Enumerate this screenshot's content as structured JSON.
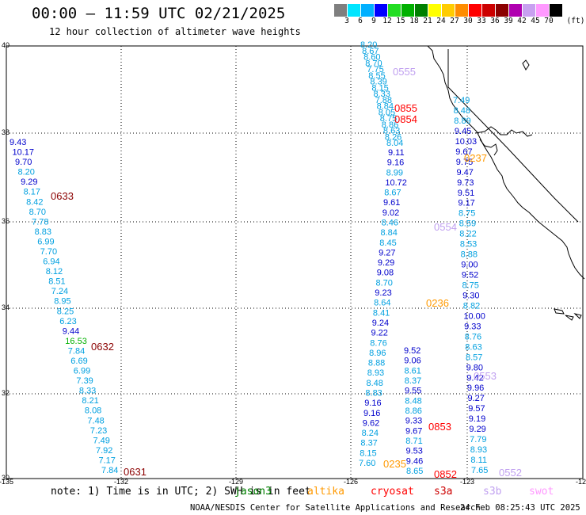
{
  "title": "00:00 — 11:59 UTC 02/21/2025",
  "subtitle": "12 hour collection of altimeter wave heights",
  "legend": {
    "units": "(ft)",
    "bins": [
      {
        "label": "3",
        "color": "#7f7f7f"
      },
      {
        "label": "6",
        "color": "#00e5ff"
      },
      {
        "label": "9",
        "color": "#00b0ff"
      },
      {
        "label": "12",
        "color": "#0000ff"
      },
      {
        "label": "15",
        "color": "#22dd22"
      },
      {
        "label": "18",
        "color": "#00b000"
      },
      {
        "label": "21",
        "color": "#008000"
      },
      {
        "label": "24",
        "color": "#ffff00"
      },
      {
        "label": "27",
        "color": "#ffcc00"
      },
      {
        "label": "30",
        "color": "#ff8c00"
      },
      {
        "label": "33",
        "color": "#ff0000"
      },
      {
        "label": "36",
        "color": "#cc0000"
      },
      {
        "label": "39",
        "color": "#8b0000"
      },
      {
        "label": "42",
        "color": "#b000b0"
      },
      {
        "label": "45",
        "color": "#c8a0f0"
      },
      {
        "label": "70",
        "color": "#ff99ff"
      },
      {
        "label": "",
        "color": "#000000"
      }
    ]
  },
  "axes": {
    "lat_labels": [
      "40",
      "38",
      "36",
      "34",
      "32",
      "30"
    ],
    "lon_labels": [
      "-135",
      "-132",
      "-129",
      "-126",
      "-123",
      "-120"
    ]
  },
  "passes": [
    {
      "label": "0555",
      "color": "#c0a0f0"
    },
    {
      "label": "0855",
      "color": "#ff0000"
    },
    {
      "label": "0854",
      "color": "#ff0000"
    },
    {
      "label": "0237",
      "color": "#ff9900"
    },
    {
      "label": "0633",
      "color": "#8b0000"
    },
    {
      "label": "0554",
      "color": "#c0a0f0"
    },
    {
      "label": "0236",
      "color": "#ff9900"
    },
    {
      "label": "0632",
      "color": "#8b0000"
    },
    {
      "label": "0553",
      "color": "#c0a0f0"
    },
    {
      "label": "0853",
      "color": "#ff0000"
    },
    {
      "label": "0631",
      "color": "#8b0000"
    },
    {
      "label": "0235",
      "color": "#ff9900"
    },
    {
      "label": "0852",
      "color": "#ff0000"
    },
    {
      "label": "0552",
      "color": "#c0a0f0"
    }
  ],
  "tracks": {
    "track_0633": [
      "9.43",
      "10.17",
      "9.70",
      "8.20",
      "9.29",
      "8.17",
      "8.42",
      "8.70",
      "7.78",
      "8.83",
      "6.99",
      "7.70",
      "6.94",
      "8.12",
      "8.51",
      "7.24",
      "8.95",
      "8.25",
      "6.23",
      "9.44",
      "16.53",
      "7.84",
      "6.69",
      "6.99",
      "7.39",
      "8.33",
      "8.21",
      "8.08",
      "7.48",
      "7.23",
      "7.49",
      "7.92",
      "7.17",
      "7.84"
    ],
    "track_0555_upper": [
      "8.20",
      "8.67",
      "8.60",
      "8.70",
      "7.75",
      "8.55",
      "8.39",
      "8.15",
      "8.33",
      "7.88",
      "8.84",
      "8.05",
      "8.75",
      "8.86",
      "8.63",
      "8.26",
      "8.04"
    ],
    "track_center": [
      "9.11",
      "9.16",
      "8.99",
      "10.72",
      "8.67",
      "9.61",
      "9.02",
      "8.46",
      "8.84",
      "8.45",
      "9.27",
      "9.29",
      "9.08",
      "8.70",
      "9.23",
      "8.64",
      "8.41",
      "9.24",
      "9.22",
      "8.76",
      "8.96",
      "8.88",
      "8.93",
      "8.48",
      "8.83",
      "9.16",
      "9.16",
      "9.62",
      "8.24",
      "8.37",
      "8.15",
      "7.60"
    ],
    "track_east": [
      "7.49",
      "8.48",
      "8.89",
      "9.45",
      "10.03",
      "9.67",
      "9.75",
      "9.47",
      "9.73",
      "9.51",
      "9.17",
      "8.75",
      "8.59",
      "8.22",
      "8.53",
      "8.88",
      "9.00",
      "9.52",
      "8.75",
      "9.30",
      "8.82",
      "10.00",
      "9.33",
      "8.76",
      "8.63",
      "8.57",
      "9.80",
      "9.42",
      "9.96",
      "9.27",
      "9.57",
      "9.19",
      "9.29",
      "7.79",
      "8.93",
      "8.11",
      "7.65"
    ],
    "track_south_mid": [
      "9.52",
      "9.06",
      "8.61",
      "8.37",
      "9.55",
      "8.48",
      "8.86",
      "9.33",
      "9.67",
      "8.71",
      "9.53",
      "9.46",
      "8.65"
    ]
  },
  "footer": {
    "note": "note: 1) Time is in UTC; 2) SWH is in feet",
    "satellites": [
      {
        "name": "jason3",
        "color": "#008000"
      },
      {
        "name": "altika",
        "color": "#ff9900"
      },
      {
        "name": "cryosat",
        "color": "#ff0000"
      },
      {
        "name": "s3a",
        "color": "#cc0000"
      },
      {
        "name": "s3b",
        "color": "#c0a0f0"
      },
      {
        "name": "swot",
        "color": "#ff99ff"
      }
    ],
    "credit": "NOAA/NESDIS Center for Satellite Applications and Research",
    "generated": "24 Feb 08:25:43 UTC 2025"
  }
}
